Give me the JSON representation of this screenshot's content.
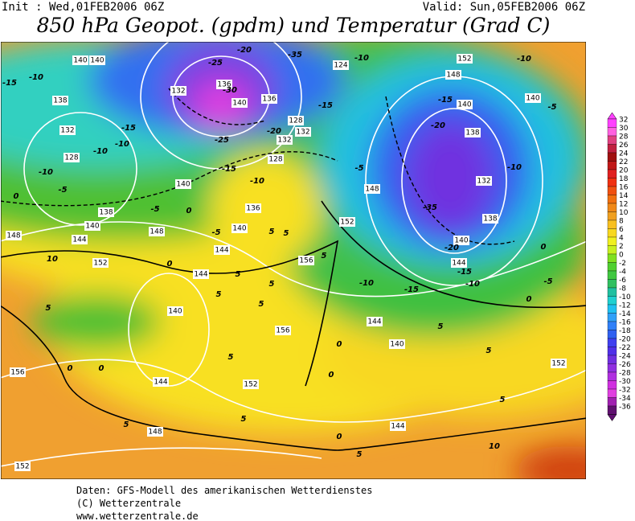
{
  "header": {
    "init": "Init : Wed,01FEB2006 06Z",
    "valid": "Valid: Sun,05FEB2006 06Z",
    "title": "850 hPa Geopot. (gpdm) und Temperatur (Grad C)"
  },
  "colorbar": {
    "labels": [
      32,
      30,
      28,
      26,
      24,
      22,
      20,
      18,
      16,
      14,
      12,
      10,
      8,
      6,
      4,
      2,
      0,
      -2,
      -4,
      -6,
      -8,
      -10,
      -12,
      -14,
      -16,
      -18,
      -20,
      -22,
      -24,
      -26,
      -28,
      -30,
      -32,
      -34,
      -36
    ],
    "colors": [
      "#ff40ff",
      "#ff60e0",
      "#e04080",
      "#c02040",
      "#a01010",
      "#c01818",
      "#e02020",
      "#f03010",
      "#f05010",
      "#f07010",
      "#f08818",
      "#f0a020",
      "#f8c020",
      "#f8d820",
      "#f0f020",
      "#c8f020",
      "#80e020",
      "#50d030",
      "#40c840",
      "#30c060",
      "#20c0a0",
      "#20d0d0",
      "#20c0f0",
      "#30a0f8",
      "#3080f8",
      "#3060f0",
      "#4040f0",
      "#5030e8",
      "#7030e0",
      "#9030e0",
      "#b030e0",
      "#d030e0",
      "#e040e0",
      "#a020b0",
      "#601070"
    ]
  },
  "map": {
    "geopotential_labels": [
      "140",
      "140",
      "138",
      "132",
      "128",
      "138",
      "140",
      "144",
      "148",
      "152",
      "148",
      "144",
      "140",
      "136",
      "140",
      "132",
      "136",
      "140",
      "136",
      "132",
      "132",
      "128",
      "128",
      "124",
      "152",
      "148",
      "140",
      "138",
      "132",
      "138",
      "140",
      "144",
      "140",
      "148",
      "152",
      "156",
      "144",
      "140",
      "156",
      "144",
      "140",
      "144",
      "152",
      "148",
      "156",
      "152",
      "144",
      "152"
    ],
    "temperature_labels": [
      "-15",
      "-10",
      "-15",
      "-10",
      "-10",
      "-10",
      "-5",
      "0",
      "-5",
      "-5",
      "0",
      "0",
      "10",
      "5",
      "-25",
      "-30",
      "-25",
      "-15",
      "-20",
      "-10",
      "-35",
      "-20",
      "-10",
      "-15",
      "-5",
      "-15",
      "-20",
      "-10",
      "-35",
      "-20",
      "-15",
      "-10",
      "-10",
      "-15",
      "-10",
      "-5",
      "5",
      "5",
      "5",
      "5",
      "5",
      "5",
      "5",
      "5",
      "5",
      "0",
      "0",
      "0",
      "0",
      "5",
      "5",
      "10",
      "5",
      "5",
      "0",
      "0",
      "-5",
      "0",
      "5"
    ]
  },
  "footer": {
    "source": "Daten: GFS-Modell des amerikanischen Wetterdienstes",
    "copyright": "(C) Wetterzentrale",
    "url": "www.wetterzentrale.de"
  }
}
